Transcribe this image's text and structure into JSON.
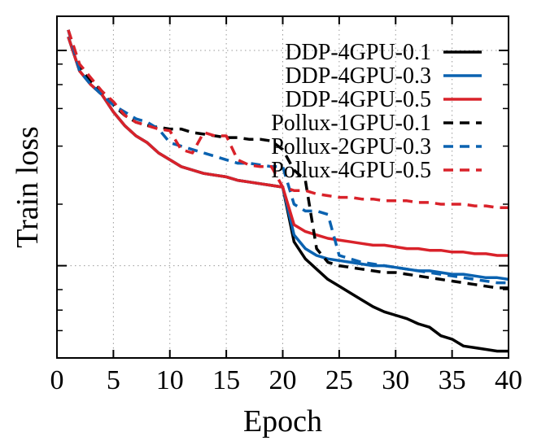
{
  "chart_data": {
    "type": "line",
    "title": "",
    "xlabel": "Epoch",
    "ylabel": "Train loss",
    "xlim": [
      0,
      40
    ],
    "ylim": [
      0,
      1
    ],
    "y_tick_labels_shown": false,
    "x_ticks": [
      0,
      5,
      10,
      15,
      20,
      25,
      30,
      35,
      40
    ],
    "y_ticks": [
      0.27,
      0.9
    ],
    "y_minor_ticks": [
      0.08,
      0.14,
      0.2,
      0.45,
      0.62,
      0.73,
      0.8,
      0.86
    ],
    "grid": "dotted",
    "legend": "top-right",
    "series": [
      {
        "name": "DDP-4GPU-0.1",
        "color": "#000000",
        "dash": "solid",
        "x": [
          1,
          2,
          3,
          4,
          5,
          6,
          7,
          8,
          9,
          10,
          11,
          12,
          13,
          14,
          15,
          16,
          17,
          18,
          19,
          20,
          21,
          22,
          23,
          24,
          25,
          26,
          27,
          28,
          29,
          30,
          31,
          32,
          33,
          34,
          35,
          36,
          37,
          38,
          39,
          40
        ],
        "y": [
          0.94,
          0.84,
          0.8,
          0.77,
          0.72,
          0.68,
          0.65,
          0.63,
          0.6,
          0.58,
          0.56,
          0.55,
          0.54,
          0.535,
          0.53,
          0.52,
          0.515,
          0.51,
          0.505,
          0.5,
          0.34,
          0.29,
          0.26,
          0.23,
          0.21,
          0.19,
          0.17,
          0.15,
          0.135,
          0.125,
          0.115,
          0.1,
          0.09,
          0.065,
          0.055,
          0.035,
          0.03,
          0.025,
          0.02,
          0.02
        ]
      },
      {
        "name": "DDP-4GPU-0.3",
        "color": "#0a62b0",
        "dash": "solid",
        "x": [
          1,
          2,
          3,
          4,
          5,
          6,
          7,
          8,
          9,
          10,
          11,
          12,
          13,
          14,
          15,
          16,
          17,
          18,
          19,
          20,
          21,
          22,
          23,
          24,
          25,
          26,
          27,
          28,
          29,
          30,
          31,
          32,
          33,
          34,
          35,
          36,
          37,
          38,
          39,
          40
        ],
        "y": [
          0.94,
          0.84,
          0.8,
          0.77,
          0.72,
          0.68,
          0.65,
          0.63,
          0.6,
          0.58,
          0.56,
          0.55,
          0.54,
          0.535,
          0.53,
          0.52,
          0.515,
          0.51,
          0.505,
          0.5,
          0.36,
          0.32,
          0.3,
          0.29,
          0.285,
          0.28,
          0.275,
          0.27,
          0.27,
          0.265,
          0.26,
          0.255,
          0.255,
          0.25,
          0.245,
          0.245,
          0.24,
          0.235,
          0.235,
          0.23
        ]
      },
      {
        "name": "DDP-4GPU-0.5",
        "color": "#d9222a",
        "dash": "solid",
        "x": [
          1,
          2,
          3,
          4,
          5,
          6,
          7,
          8,
          9,
          10,
          11,
          12,
          13,
          14,
          15,
          16,
          17,
          18,
          19,
          20,
          21,
          22,
          23,
          24,
          25,
          26,
          27,
          28,
          29,
          30,
          31,
          32,
          33,
          34,
          35,
          36,
          37,
          38,
          39,
          40
        ],
        "y": [
          0.94,
          0.84,
          0.8,
          0.77,
          0.72,
          0.68,
          0.65,
          0.63,
          0.6,
          0.58,
          0.56,
          0.55,
          0.54,
          0.535,
          0.53,
          0.52,
          0.515,
          0.51,
          0.505,
          0.5,
          0.39,
          0.37,
          0.36,
          0.35,
          0.345,
          0.34,
          0.335,
          0.33,
          0.33,
          0.325,
          0.32,
          0.32,
          0.315,
          0.315,
          0.31,
          0.31,
          0.305,
          0.305,
          0.3,
          0.3
        ]
      },
      {
        "name": "Pollux-1GPU-0.1",
        "color": "#000000",
        "dash": "dashed",
        "x": [
          1,
          2,
          3,
          4,
          5,
          6,
          7,
          8,
          9,
          10,
          11,
          12,
          13,
          14,
          15,
          16,
          17,
          18,
          19,
          20,
          21,
          22,
          23,
          24,
          25,
          26,
          27,
          28,
          29,
          30,
          31,
          32,
          33,
          34,
          35,
          36,
          37,
          38,
          39,
          40
        ],
        "y": [
          0.96,
          0.85,
          0.81,
          0.78,
          0.74,
          0.71,
          0.69,
          0.68,
          0.675,
          0.67,
          0.67,
          0.66,
          0.655,
          0.65,
          0.645,
          0.645,
          0.64,
          0.64,
          0.635,
          0.61,
          0.55,
          0.52,
          0.32,
          0.28,
          0.27,
          0.265,
          0.26,
          0.255,
          0.25,
          0.25,
          0.245,
          0.24,
          0.235,
          0.23,
          0.225,
          0.22,
          0.215,
          0.21,
          0.205,
          0.205
        ]
      },
      {
        "name": "Pollux-2GPU-0.3",
        "color": "#0a62b0",
        "dash": "dashed",
        "x": [
          1,
          2,
          3,
          4,
          5,
          6,
          7,
          8,
          9,
          10,
          11,
          12,
          13,
          14,
          15,
          16,
          17,
          18,
          19,
          20,
          21,
          22,
          23,
          24,
          25,
          26,
          27,
          28,
          29,
          30,
          31,
          32,
          33,
          34,
          35,
          36,
          37,
          38,
          39,
          40
        ],
        "y": [
          0.96,
          0.84,
          0.8,
          0.77,
          0.74,
          0.72,
          0.7,
          0.69,
          0.67,
          0.63,
          0.62,
          0.61,
          0.6,
          0.59,
          0.58,
          0.57,
          0.57,
          0.565,
          0.56,
          0.56,
          0.45,
          0.43,
          0.43,
          0.42,
          0.3,
          0.29,
          0.28,
          0.275,
          0.27,
          0.265,
          0.26,
          0.255,
          0.25,
          0.245,
          0.24,
          0.235,
          0.23,
          0.225,
          0.22,
          0.22
        ]
      },
      {
        "name": "Pollux-4GPU-0.5",
        "color": "#d9222a",
        "dash": "dashed",
        "x": [
          1,
          2,
          3,
          4,
          5,
          6,
          7,
          8,
          9,
          10,
          11,
          12,
          13,
          14,
          15,
          16,
          17,
          18,
          19,
          20,
          21,
          22,
          23,
          24,
          25,
          26,
          27,
          28,
          29,
          30,
          31,
          32,
          33,
          34,
          35,
          36,
          37,
          38,
          39,
          40
        ],
        "y": [
          0.96,
          0.86,
          0.82,
          0.78,
          0.75,
          0.71,
          0.69,
          0.68,
          0.67,
          0.665,
          0.61,
          0.6,
          0.66,
          0.65,
          0.65,
          0.58,
          0.565,
          0.56,
          0.56,
          0.5,
          0.49,
          0.49,
          0.48,
          0.475,
          0.47,
          0.47,
          0.465,
          0.465,
          0.46,
          0.46,
          0.46,
          0.455,
          0.455,
          0.45,
          0.45,
          0.45,
          0.445,
          0.445,
          0.44,
          0.44
        ]
      }
    ]
  }
}
